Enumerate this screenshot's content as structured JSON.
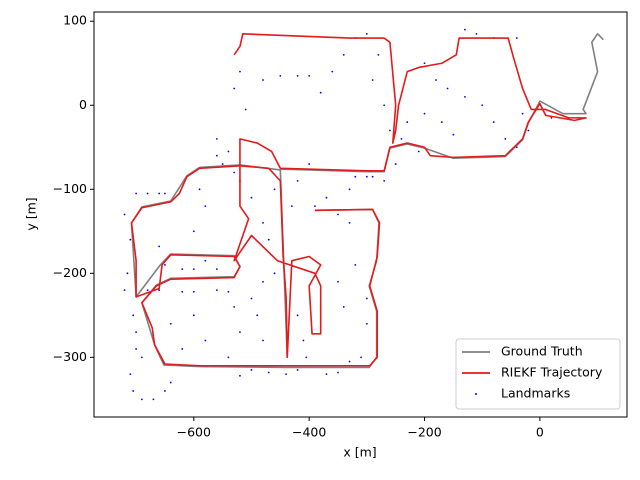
{
  "chart_data": {
    "type": "line",
    "xlabel": "x [m]",
    "ylabel": "y [m]",
    "xlim": [
      -773,
      151
    ],
    "ylim": [
      -371,
      111
    ],
    "xticks": [
      {
        "value": -600,
        "label": "−600"
      },
      {
        "value": -400,
        "label": "−400"
      },
      {
        "value": -200,
        "label": "−200"
      },
      0
    ],
    "yticks": [
      {
        "value": -300,
        "label": "−300"
      },
      {
        "value": -200,
        "label": "−200"
      },
      {
        "value": -100,
        "label": "−100"
      },
      0,
      100
    ],
    "legend": "lower right",
    "series": [
      {
        "name": "Ground Truth",
        "color": "#808080",
        "type": "line",
        "x": [
          -390,
          -290,
          -279,
          -283,
          -296,
          -283,
          -283,
          -296,
          -440,
          -590,
          -652,
          -668,
          -690,
          -665,
          -640,
          -530,
          -520,
          -530,
          -640,
          -658,
          -700,
          -708,
          -690,
          -640,
          -612,
          -590,
          -520,
          -450,
          -445,
          -440,
          -438,
          -450,
          -300,
          -270,
          -260,
          -230,
          -200,
          -150,
          -60,
          -30,
          -20,
          0,
          40,
          80,
          75,
          100,
          90,
          100,
          110
        ],
        "values": [
          -125,
          -124,
          -140,
          -185,
          -215,
          -245,
          -300,
          -312,
          -312,
          -311,
          -309,
          -285,
          -235,
          -214,
          -206,
          -204,
          -192,
          -179,
          -177,
          -190,
          -228,
          -140,
          -121,
          -114,
          -84,
          -74,
          -71,
          -77,
          -180,
          -230,
          -300,
          -76,
          -79,
          -79,
          -51,
          -46,
          -51,
          -63,
          -61,
          -41,
          -21,
          5,
          -10,
          -10,
          -5,
          40,
          75,
          85,
          78
        ]
      },
      {
        "name": "RIEKF Trajectory",
        "color": "#e41a1c",
        "type": "line",
        "x": [
          -390,
          -290,
          -278,
          -282,
          -295,
          -282,
          -282,
          -295,
          -440,
          -590,
          -650,
          -668,
          -672,
          -690,
          -665,
          -640,
          -530,
          -520,
          -530,
          -640,
          -655,
          -660,
          -700,
          -700,
          -708,
          -690,
          -640,
          -625,
          -612,
          -590,
          -520,
          -470,
          -450,
          -445,
          -440,
          -438,
          -430,
          -400,
          -380,
          -400,
          -395,
          -380,
          -380,
          -390,
          -455,
          -500,
          -530,
          -505,
          -520,
          -520,
          -490,
          -465,
          -450,
          -300,
          -270,
          -260,
          -230,
          -200,
          -190,
          -150,
          -60,
          -30,
          -20,
          0,
          10,
          60,
          80,
          50,
          10,
          -15,
          -30,
          -45,
          -55,
          -140,
          -145,
          -170,
          -210,
          -230,
          -245,
          -250,
          -255,
          -250,
          -260,
          -270,
          -330,
          -515,
          -520,
          -530
        ],
        "values": [
          -125,
          -124,
          -140,
          -180,
          -215,
          -245,
          -300,
          -310,
          -310,
          -310,
          -308,
          -285,
          -265,
          -235,
          -215,
          -207,
          -205,
          -192,
          -180,
          -178,
          -190,
          -218,
          -228,
          -185,
          -140,
          -122,
          -115,
          -105,
          -85,
          -75,
          -72,
          -75,
          -90,
          -180,
          -230,
          -300,
          -185,
          -180,
          -190,
          -215,
          -272,
          -272,
          -215,
          -200,
          -185,
          -155,
          -185,
          -135,
          -120,
          -40,
          -45,
          -55,
          -75,
          -78,
          -78,
          -50,
          -45,
          -50,
          -60,
          -62,
          -60,
          -40,
          -20,
          2,
          -12,
          -18,
          -15,
          -15,
          -5,
          -5,
          20,
          55,
          80,
          80,
          60,
          50,
          45,
          40,
          0,
          -30,
          -45,
          0,
          75,
          80,
          80,
          85,
          70,
          60
        ]
      },
      {
        "name": "Landmarks",
        "color": "#0000ff",
        "type": "scatter",
        "x": [
          -700,
          -680,
          -660,
          -650,
          -710,
          -715,
          -705,
          -700,
          -710,
          -705,
          -690,
          -670,
          -650,
          -640,
          -700,
          -690,
          -680,
          -660,
          -620,
          -600,
          -560,
          -540,
          -650,
          -620,
          -600,
          -580,
          -560,
          -660,
          -600,
          -590,
          -580,
          -560,
          -540,
          -530,
          -520,
          -500,
          -480,
          -470,
          -460,
          -430,
          -420,
          -400,
          -370,
          -350,
          -330,
          -320,
          -300,
          -290,
          -330,
          -320,
          -300,
          -300,
          -310,
          -330,
          -350,
          -370,
          -420,
          -440,
          -470,
          -500,
          -520,
          -540,
          -520,
          -530,
          -490,
          -480,
          -420,
          -410,
          -405,
          -460,
          -480,
          -500,
          -520,
          -530,
          -510,
          -480,
          -450,
          -420,
          -400,
          -380,
          -360,
          -340,
          -320,
          -300,
          -280,
          -290,
          -270,
          -260,
          -240,
          -210,
          -200,
          -180,
          -160,
          -130,
          -100,
          -80,
          -60,
          -40,
          -20,
          -130,
          -110,
          -80,
          -40,
          -30,
          20,
          -150,
          -170,
          -200,
          -230,
          -250,
          -270,
          -390,
          -350,
          -340,
          -560,
          -550,
          -600,
          -620,
          -580,
          -640,
          -720,
          -720
        ],
        "values": [
          -105,
          -105,
          -105,
          -105,
          -160,
          -200,
          -250,
          -290,
          -320,
          -340,
          -350,
          -350,
          -340,
          -330,
          -270,
          -300,
          -220,
          -220,
          -222,
          -222,
          -220,
          -222,
          -190,
          -195,
          -195,
          -185,
          -195,
          -168,
          -150,
          -100,
          -120,
          -60,
          -55,
          -80,
          -90,
          -110,
          -140,
          -160,
          -100,
          -120,
          -90,
          -70,
          -110,
          -130,
          -100,
          -85,
          -85,
          -85,
          -140,
          -190,
          -230,
          -260,
          -300,
          -305,
          -318,
          -320,
          -315,
          -320,
          -318,
          -315,
          -322,
          -300,
          -270,
          -240,
          -250,
          -280,
          -250,
          -280,
          -300,
          -200,
          -210,
          -230,
          40,
          20,
          -5,
          30,
          35,
          35,
          35,
          15,
          40,
          60,
          80,
          85,
          60,
          30,
          0,
          -30,
          -40,
          -55,
          50,
          30,
          20,
          10,
          0,
          -20,
          -40,
          -50,
          -30,
          90,
          85,
          80,
          80,
          -10,
          -15,
          -35,
          -20,
          -10,
          -20,
          -70,
          -90,
          -120,
          -210,
          -240,
          -40,
          -70,
          -250,
          -290,
          -280,
          -260,
          -130,
          -220
        ]
      }
    ]
  }
}
